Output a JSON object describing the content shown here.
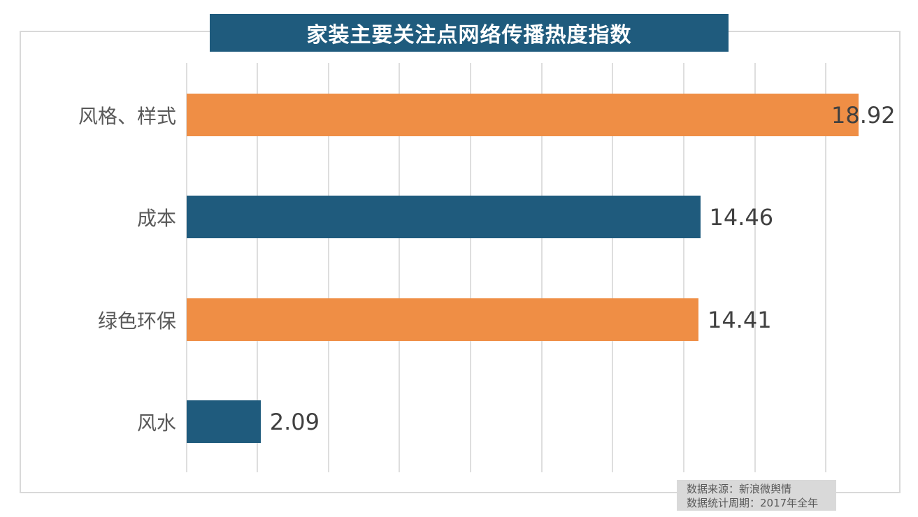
{
  "title": "家装主要关注点网络传播热度指数",
  "source_note": {
    "line1": "数据来源：新浪微舆情",
    "line2": "数据统计周期：2017年全年"
  },
  "colors": {
    "title_bg": "#1F5B7D",
    "bar_orange": "#EF8E45",
    "bar_blue": "#1F5B7D",
    "gridline": "#DEDEDE",
    "frame_border": "#D9D9D9",
    "category_text": "#595959",
    "value_text": "#404040",
    "note_bg": "#D9D9D9",
    "note_text": "#595959",
    "title_text": "#FFFFFF"
  },
  "chart_data": {
    "type": "bar",
    "orientation": "horizontal",
    "title": "家装主要关注点网络传播热度指数",
    "categories": [
      "风格、样式",
      "成本",
      "绿色环保",
      "风水"
    ],
    "values": [
      18.92,
      14.46,
      14.41,
      2.09
    ],
    "value_labels": [
      "18.92",
      "14.46",
      "14.41",
      "2.09"
    ],
    "bar_colors": [
      "#EF8E45",
      "#1F5B7D",
      "#EF8E45",
      "#1F5B7D"
    ],
    "xlabel": "",
    "ylabel": "",
    "xlim": [
      0,
      20.1
    ],
    "gridline_values": [
      0,
      2,
      4,
      6,
      8,
      10,
      12,
      14,
      16,
      18
    ],
    "grid": true,
    "legend": false,
    "tick_labels_visible": false
  }
}
